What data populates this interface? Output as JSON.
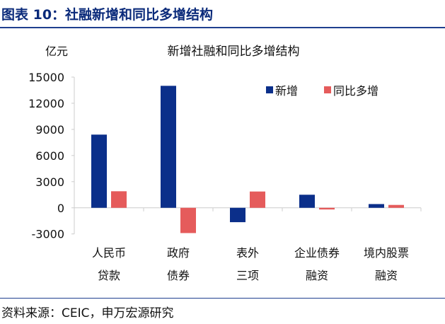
{
  "figure_title": "图表 10：社融新增和同比多增结构",
  "source": "资料来源：CEIC，申万宏源研究",
  "chart_data": {
    "type": "bar",
    "title": "新增社融和同比多增结构",
    "ylabel": "亿元",
    "xlabel": "",
    "categories": [
      [
        "人民币",
        "贷款"
      ],
      [
        "政府",
        "债券"
      ],
      [
        "表外",
        "三项"
      ],
      [
        "企业债券",
        "融资"
      ],
      [
        "境内股票",
        "融资"
      ]
    ],
    "series": [
      {
        "name": "新增",
        "color": "#0b2f8a",
        "values": [
          8400,
          14000,
          -1650,
          1500,
          430
        ]
      },
      {
        "name": "同比多增",
        "color": "#e55b5b",
        "values": [
          1900,
          -2900,
          1870,
          -190,
          330
        ]
      }
    ],
    "ylim": [
      -3000,
      15000
    ],
    "yticks": [
      -3000,
      0,
      3000,
      6000,
      9000,
      12000,
      15000
    ],
    "grid": false,
    "legend": "top-right"
  }
}
